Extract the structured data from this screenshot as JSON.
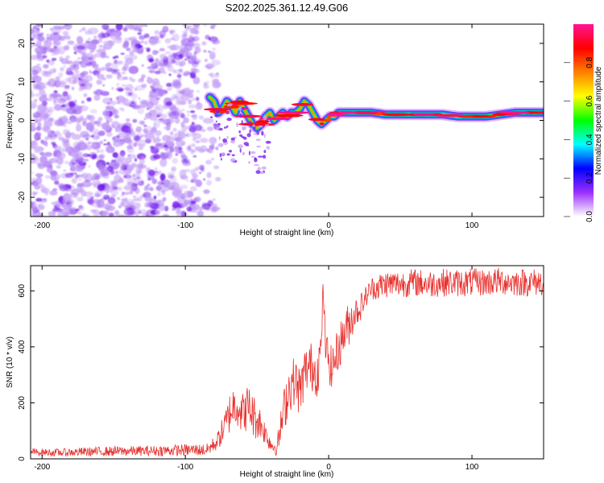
{
  "title": "S202.2025.361.12.49.G06",
  "colors": {
    "snr_line": "#e8312e",
    "noise_purple": "#7a22f0",
    "noise_light": "#c9a6f7",
    "frame": "#000000"
  },
  "chart_data": [
    {
      "id": "spectrogram",
      "type": "heatmap",
      "xlabel": "Height of straight line (km)",
      "ylabel": "Frequency (Hz)",
      "xlim": [
        -208,
        150
      ],
      "ylim": [
        -25,
        25
      ],
      "xticks": [
        -200,
        -100,
        0,
        100
      ],
      "xtick_labels": [
        "-200",
        "-100",
        "0",
        "100"
      ],
      "yticks": [
        20,
        10,
        0,
        -10,
        -20
      ],
      "ytick_labels": [
        "20",
        "10",
        "0",
        "-10",
        "-20"
      ],
      "noise_region_x": [
        -208,
        -83
      ],
      "signal_ridge": {
        "x": [
          -83,
          -80,
          -77,
          -74,
          -71,
          -68,
          -65,
          -62,
          -59,
          -56,
          -53,
          -50,
          -47,
          -44,
          -41,
          -38,
          -35,
          -32,
          -29,
          -26,
          -23,
          -20,
          -17,
          -14,
          -11,
          -8,
          -5,
          -2,
          1,
          4,
          7,
          10,
          20,
          30,
          40,
          50,
          60,
          70,
          80,
          90,
          100,
          110,
          120,
          130,
          140,
          150
        ],
        "freq": [
          6,
          5,
          2,
          3,
          5,
          4,
          2,
          5,
          3,
          1,
          -1,
          -2,
          -1,
          1,
          2,
          0,
          1,
          2,
          1,
          2,
          2,
          3,
          5,
          4,
          2,
          0,
          -1,
          0,
          1,
          1,
          2,
          2,
          2,
          2,
          1.5,
          1.5,
          1.5,
          1.5,
          1.5,
          1,
          1,
          1,
          1.5,
          2,
          2,
          2
        ]
      },
      "colorbar": {
        "label": "Normalized spectral amplitude",
        "range": [
          0,
          1
        ],
        "ticks": [
          0.0,
          0.2,
          0.4,
          0.6,
          0.8
        ],
        "tick_labels": [
          "0.0",
          "0.2",
          "0.4",
          "0.6",
          "0.8"
        ],
        "colormap": [
          "#ffffff",
          "#9b30ff",
          "#0000ff",
          "#00ffff",
          "#00ff00",
          "#ffff00",
          "#ff8000",
          "#ff0000",
          "#ff1493"
        ]
      }
    },
    {
      "id": "snr",
      "type": "line",
      "xlabel": "Height of straight line (km)",
      "ylabel": "SNR (10 * v/v)",
      "xlim": [
        -208,
        150
      ],
      "ylim": [
        0,
        690
      ],
      "xticks": [
        -200,
        -100,
        0,
        100
      ],
      "xtick_labels": [
        "-200",
        "-100",
        "0",
        "100"
      ],
      "yticks": [
        0,
        200,
        400,
        600
      ],
      "ytick_labels": [
        "0",
        "200",
        "400",
        "600"
      ],
      "series": [
        {
          "name": "SNR",
          "x": [
            -208,
            -190,
            -170,
            -150,
            -130,
            -110,
            -95,
            -85,
            -78,
            -72,
            -68,
            -64,
            -60,
            -56,
            -52,
            -48,
            -44,
            -40,
            -36,
            -32,
            -28,
            -24,
            -20,
            -16,
            -12,
            -8,
            -5,
            -4,
            -2,
            0,
            2,
            6,
            10,
            14,
            18,
            22,
            26,
            30,
            35,
            40,
            50,
            60,
            70,
            80,
            90,
            100,
            110,
            120,
            130,
            140,
            150
          ],
          "y": [
            25,
            22,
            25,
            27,
            28,
            30,
            32,
            32,
            60,
            120,
            180,
            200,
            160,
            190,
            150,
            130,
            90,
            50,
            40,
            150,
            250,
            280,
            240,
            320,
            330,
            310,
            400,
            630,
            380,
            360,
            320,
            380,
            440,
            480,
            520,
            540,
            580,
            610,
            615,
            625,
            625,
            630,
            625,
            630,
            628,
            630,
            630,
            635,
            630,
            630,
            632
          ],
          "noise_amp": [
            12,
            14,
            16,
            18,
            18,
            20,
            22,
            22,
            30,
            60,
            80,
            80,
            80,
            80,
            80,
            60,
            40,
            30,
            30,
            80,
            90,
            90,
            90,
            90,
            90,
            90,
            80,
            0,
            80,
            80,
            80,
            80,
            80,
            80,
            60,
            50,
            40,
            40,
            50,
            50,
            50,
            50,
            50,
            50,
            50,
            50,
            50,
            50,
            50,
            50,
            50
          ]
        }
      ]
    }
  ]
}
